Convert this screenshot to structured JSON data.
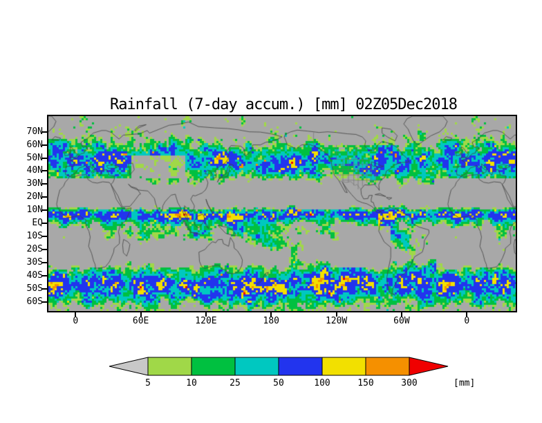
{
  "title": "Rainfall (7-day accum.) [mm] 02Z05Dec2018",
  "axes": {
    "lat_ticks": [
      {
        "label": "70N",
        "deg": 70
      },
      {
        "label": "60N",
        "deg": 60
      },
      {
        "label": "50N",
        "deg": 50
      },
      {
        "label": "40N",
        "deg": 40
      },
      {
        "label": "30N",
        "deg": 30
      },
      {
        "label": "20N",
        "deg": 20
      },
      {
        "label": "10N",
        "deg": 10
      },
      {
        "label": "EQ",
        "deg": 0
      },
      {
        "label": "10S",
        "deg": -10
      },
      {
        "label": "20S",
        "deg": -20
      },
      {
        "label": "30S",
        "deg": -30
      },
      {
        "label": "40S",
        "deg": -40
      },
      {
        "label": "50S",
        "deg": -50
      },
      {
        "label": "60S",
        "deg": -60
      }
    ],
    "lon_ticks": [
      {
        "label": "0",
        "deg": 0
      },
      {
        "label": "60E",
        "deg": 60
      },
      {
        "label": "120E",
        "deg": 120
      },
      {
        "label": "180",
        "deg": 180
      },
      {
        "label": "120W",
        "deg": 240
      },
      {
        "label": "60W",
        "deg": 300
      },
      {
        "label": "0",
        "deg": 360
      }
    ]
  },
  "legend": {
    "levels": [
      5,
      10,
      25,
      50,
      100,
      150,
      300
    ],
    "colors": [
      "#a0d848",
      "#00c040",
      "#00c8c0",
      "#2234ee",
      "#f2e000",
      "#f59000",
      "#f00000"
    ],
    "below_min_color": "#c8c8c8",
    "units_label": "[mm]"
  },
  "map": {
    "background_color": "#a8a8a8",
    "coastline_color": "#404040",
    "border_line_color": "#6f6f6f"
  },
  "chart_data": {
    "type": "heatmap",
    "title": "Rainfall (7-day accum.) [mm] 02Z05Dec2018",
    "variable": "7-day accumulated rainfall",
    "units": "mm",
    "valid_time": "02Z05Dec2018",
    "projection": "equirectangular global map, Pacific-centered, longitude span ~25W eastward through 360 to ~45E",
    "lat_tick_labels": [
      "70N",
      "60N",
      "50N",
      "40N",
      "30N",
      "20N",
      "10N",
      "EQ",
      "10S",
      "20S",
      "30S",
      "40S",
      "50S",
      "60S"
    ],
    "lon_tick_labels": [
      "0",
      "60E",
      "120E",
      "180",
      "120W",
      "60W",
      "0"
    ],
    "color_levels_mm": [
      5,
      10,
      25,
      50,
      100,
      150,
      300
    ],
    "color_scale": [
      "#a0d848",
      "#00c040",
      "#00c8c0",
      "#2234ee",
      "#f2e000",
      "#f59000",
      "#f00000"
    ],
    "below_minimum": "values under 5 mm shown as gray background",
    "legend_position": "bottom horizontal colorbar with low-end gray arrow and high-end red arrow"
  }
}
